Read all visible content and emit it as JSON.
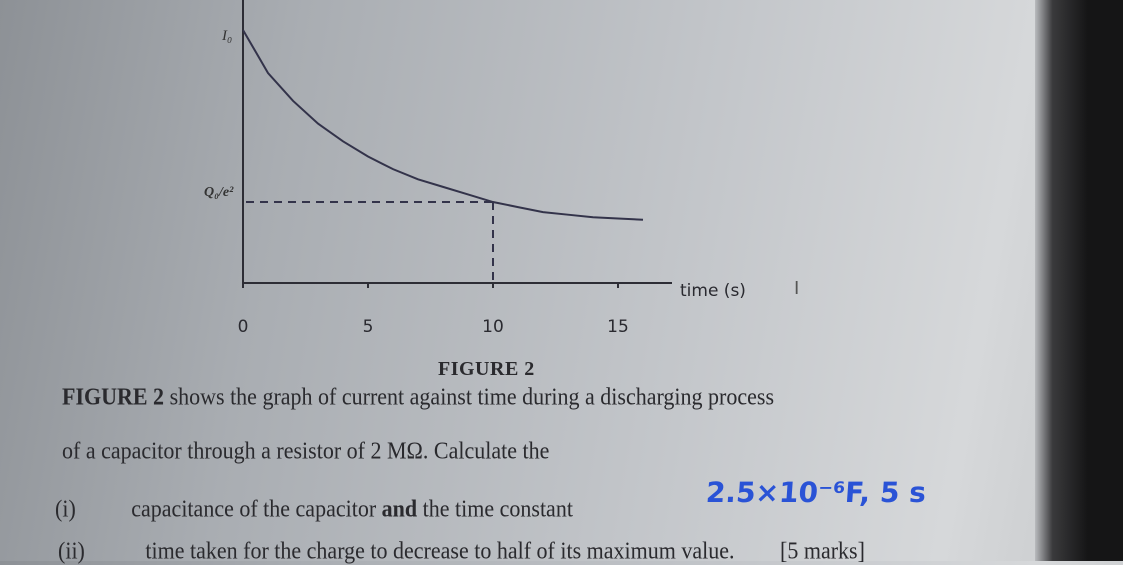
{
  "chart_data": {
    "type": "line",
    "title": "",
    "xlabel": "time (s)",
    "ylabel": "",
    "x_ticks": [
      0,
      5,
      10,
      15
    ],
    "y_tick_labels": [
      "I₀",
      "Q₀/e²"
    ],
    "xlim": [
      0,
      17
    ],
    "grid": false,
    "series": [
      {
        "x": [
          0,
          1,
          2,
          3,
          4,
          5,
          6,
          7,
          8,
          9,
          10,
          11,
          12,
          13,
          14,
          15,
          16
        ],
        "y": [
          1.0,
          0.83,
          0.72,
          0.63,
          0.56,
          0.5,
          0.45,
          0.41,
          0.38,
          0.35,
          0.32,
          0.3,
          0.28,
          0.27,
          0.26,
          0.255,
          0.25
        ]
      }
    ],
    "annotations": [
      {
        "text": "dashed guide from Q₀/e² to t = 10",
        "x": 10
      }
    ]
  },
  "figure_caption": "FIGURE 2",
  "question": {
    "line1_bold": "FIGURE 2",
    "line1_rest": " shows the graph of current against time during a discharging process",
    "line2": "of a capacitor through a resistor of 2 MΩ. Calculate the",
    "item_i_label": "(i)",
    "item_i_pre": "capacitance of the capacitor ",
    "item_i_bold": "and",
    "item_i_post": " the time constant",
    "item_ii_label": "(ii)",
    "item_ii_text": "time taken for the charge  to decrease to half of its maximum value.",
    "marks": "[5 marks]"
  },
  "handwritten_answer": "2.5×10⁻⁶F, 5 s",
  "colors": {
    "ink": "#2a2a2e",
    "handwriting": "#2a53d6"
  }
}
